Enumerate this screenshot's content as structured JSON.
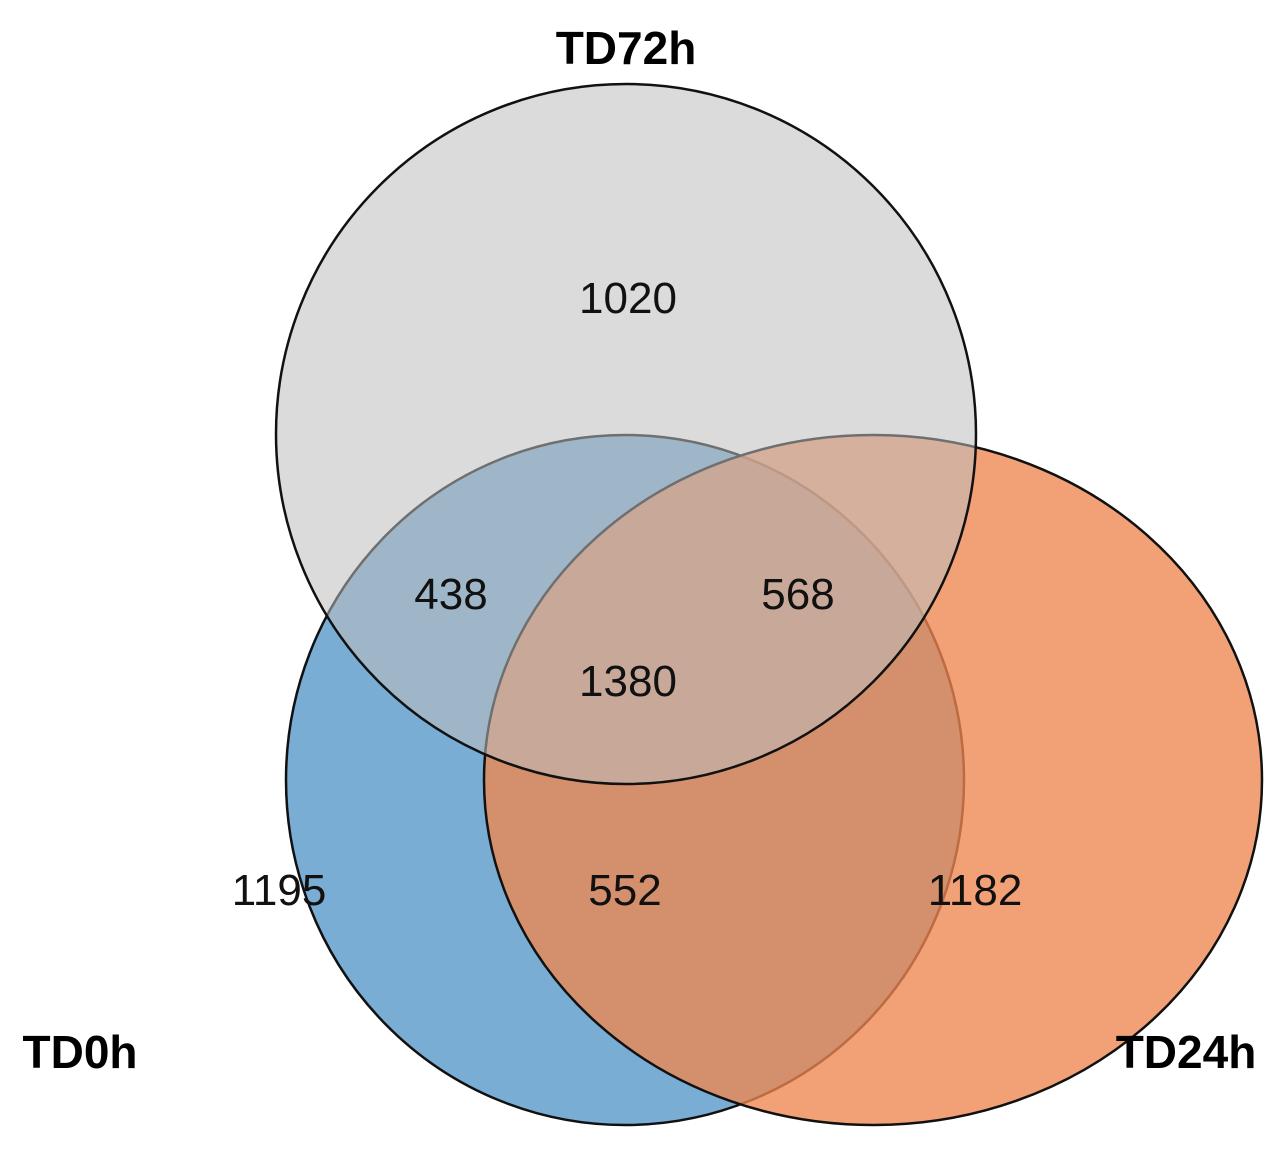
{
  "sets": [
    {
      "id": "td72h",
      "label": "TD72h",
      "color": "#bdbdbd"
    },
    {
      "id": "td0h",
      "label": "TD0h",
      "color": "#5b9bcb"
    },
    {
      "id": "td24h",
      "label": "TD24h",
      "color": "#ee8650"
    }
  ],
  "regions": {
    "td72h_only": "1020",
    "td0h_td72h": "438",
    "td72h_td24h": "568",
    "all_three": "1380",
    "td0h_only": "1195",
    "td0h_td24h": "552",
    "td24h_only": "1182"
  }
}
